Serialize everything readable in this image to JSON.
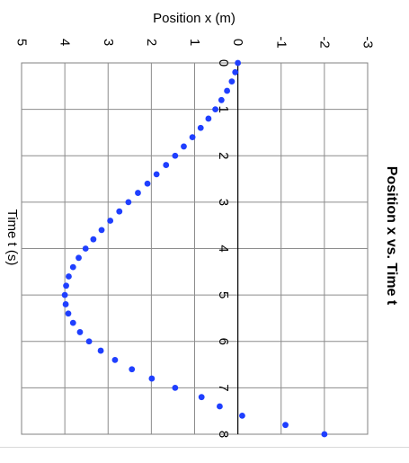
{
  "chart_data": {
    "type": "scatter",
    "title": "Position x vs. Time t",
    "xlabel": "Time t (s)",
    "ylabel": "Position x (m)",
    "xlim": [
      0,
      8
    ],
    "ylim": [
      -3,
      5
    ],
    "xticks": [
      "0",
      "1",
      "2",
      "3",
      "4",
      "5",
      "6",
      "7",
      "8"
    ],
    "yticks": [
      "-3",
      "-2",
      "-1",
      "0",
      "1",
      "2",
      "3",
      "4",
      "5"
    ],
    "grid": true,
    "orientation": "rotated 90° clockwise (time axis runs top to bottom, position axis runs right to left)",
    "series": [
      {
        "color": "#1f3fff",
        "x": [
          0,
          0.2,
          0.4,
          0.6,
          0.8,
          1.0,
          1.2,
          1.4,
          1.6,
          1.8,
          2.0,
          2.2,
          2.4,
          2.6,
          2.8,
          3.0,
          3.2,
          3.4,
          3.6,
          3.8,
          4.0,
          4.2,
          4.4,
          4.6,
          4.8,
          5.0,
          5.2,
          5.4,
          5.6,
          5.8,
          6.0,
          6.2,
          6.4,
          6.6,
          6.8,
          7.0,
          7.2,
          7.4,
          7.6,
          7.8,
          8.0
        ],
        "y": [
          0.0,
          0.06,
          0.14,
          0.25,
          0.38,
          0.52,
          0.68,
          0.86,
          1.05,
          1.25,
          1.45,
          1.66,
          1.88,
          2.09,
          2.31,
          2.53,
          2.74,
          2.95,
          3.15,
          3.34,
          3.52,
          3.68,
          3.81,
          3.91,
          3.97,
          4.0,
          3.98,
          3.92,
          3.81,
          3.65,
          3.44,
          3.17,
          2.84,
          2.45,
          1.99,
          1.45,
          0.84,
          0.42,
          -0.1,
          -1.1,
          -2.0
        ]
      }
    ]
  }
}
